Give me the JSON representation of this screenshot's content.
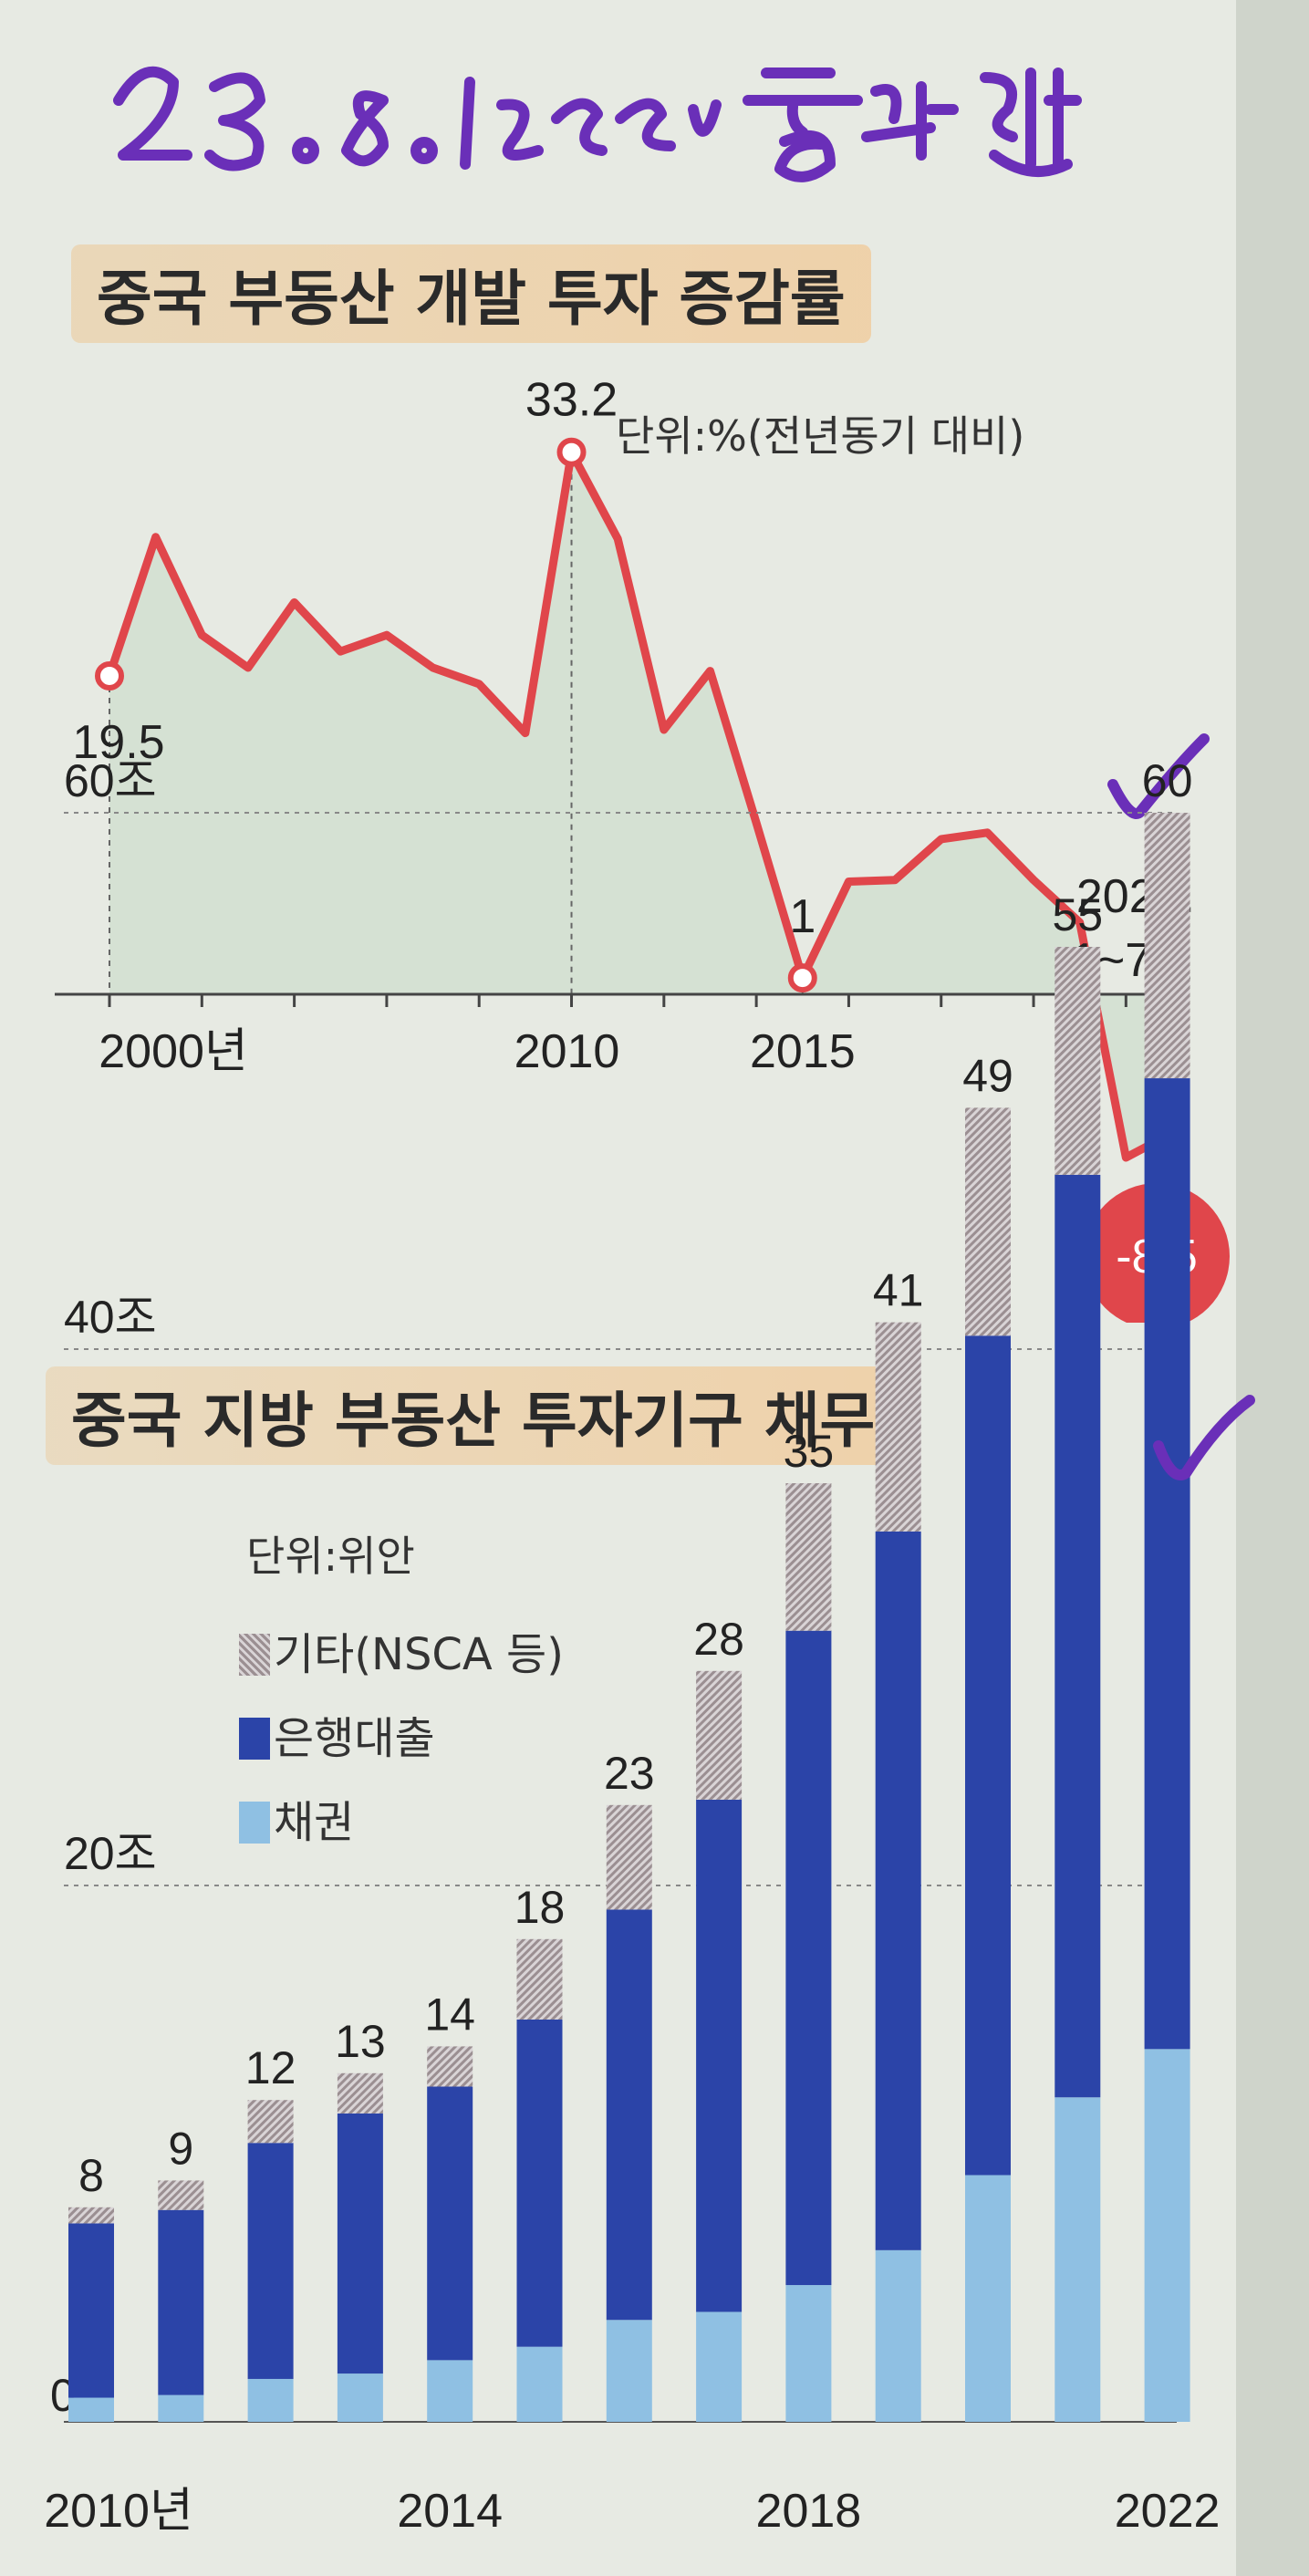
{
  "handwritten_note": "23.8.19.220 중앙일보",
  "chart_data": [
    {
      "type": "area",
      "title": "중국 부동산 개발 투자 증감률",
      "unit": "단위:%(전년동기 대비)",
      "x": [
        "2000",
        "2001",
        "2002",
        "2003",
        "2004",
        "2005",
        "2006",
        "2007",
        "2008",
        "2009",
        "2010",
        "2011",
        "2012",
        "2013",
        "2014",
        "2015",
        "2016",
        "2017",
        "2018",
        "2019",
        "2020",
        "2021",
        "2022",
        "2023.1~7"
      ],
      "values": [
        19.5,
        28,
        22,
        20,
        24,
        21,
        22,
        20,
        19,
        16,
        33.2,
        27.9,
        16.2,
        19.8,
        10.5,
        1,
        6.9,
        7,
        9.5,
        9.9,
        7,
        4.4,
        -10,
        -8.5
      ],
      "x_tick_labels": [
        "2000년",
        "2010",
        "2015"
      ],
      "last_label": [
        "2023.",
        "1~7월"
      ],
      "annotations": [
        "19.5",
        "33.2",
        "1",
        "-8.5"
      ],
      "color": "#e0464b",
      "fill": "#d3e0d0"
    },
    {
      "type": "bar",
      "stacked": true,
      "title": "중국 지방 부동산 투자기구 채무",
      "unit": "단위:위안",
      "categories": [
        "2010",
        "2011",
        "2012",
        "2013",
        "2014",
        "2015",
        "2016",
        "2017",
        "2018",
        "2019",
        "2020",
        "2021",
        "2022"
      ],
      "x_tick_labels": [
        "2010년",
        "2014",
        "2018",
        "2022"
      ],
      "y_tick_labels": [
        "0",
        "20조",
        "40조",
        "60조"
      ],
      "ylim": [
        0,
        60
      ],
      "totals": [
        "8",
        "9",
        "12",
        "13",
        "14",
        "18",
        "23",
        "28",
        "35",
        "41",
        "49",
        "55",
        "60"
      ],
      "series": [
        {
          "name": "채권",
          "color": "#8fc0e3",
          "values": [
            0.9,
            1.0,
            1.6,
            1.8,
            2.3,
            2.8,
            3.8,
            4.1,
            5.1,
            6.4,
            9.2,
            12.1,
            13.9
          ]
        },
        {
          "name": "은행대출",
          "color": "#2b44a8",
          "values": [
            6.5,
            6.9,
            8.8,
            9.7,
            10.2,
            12.2,
            15.3,
            19.1,
            24.4,
            26.8,
            31.3,
            34.4,
            36.2
          ]
        },
        {
          "name": "기타(NSCA 등)",
          "color": "#b6acae",
          "values": [
            0.6,
            1.1,
            1.6,
            1.5,
            1.5,
            3.0,
            3.9,
            4.8,
            5.5,
            7.8,
            8.5,
            8.5,
            9.9
          ]
        }
      ]
    }
  ]
}
